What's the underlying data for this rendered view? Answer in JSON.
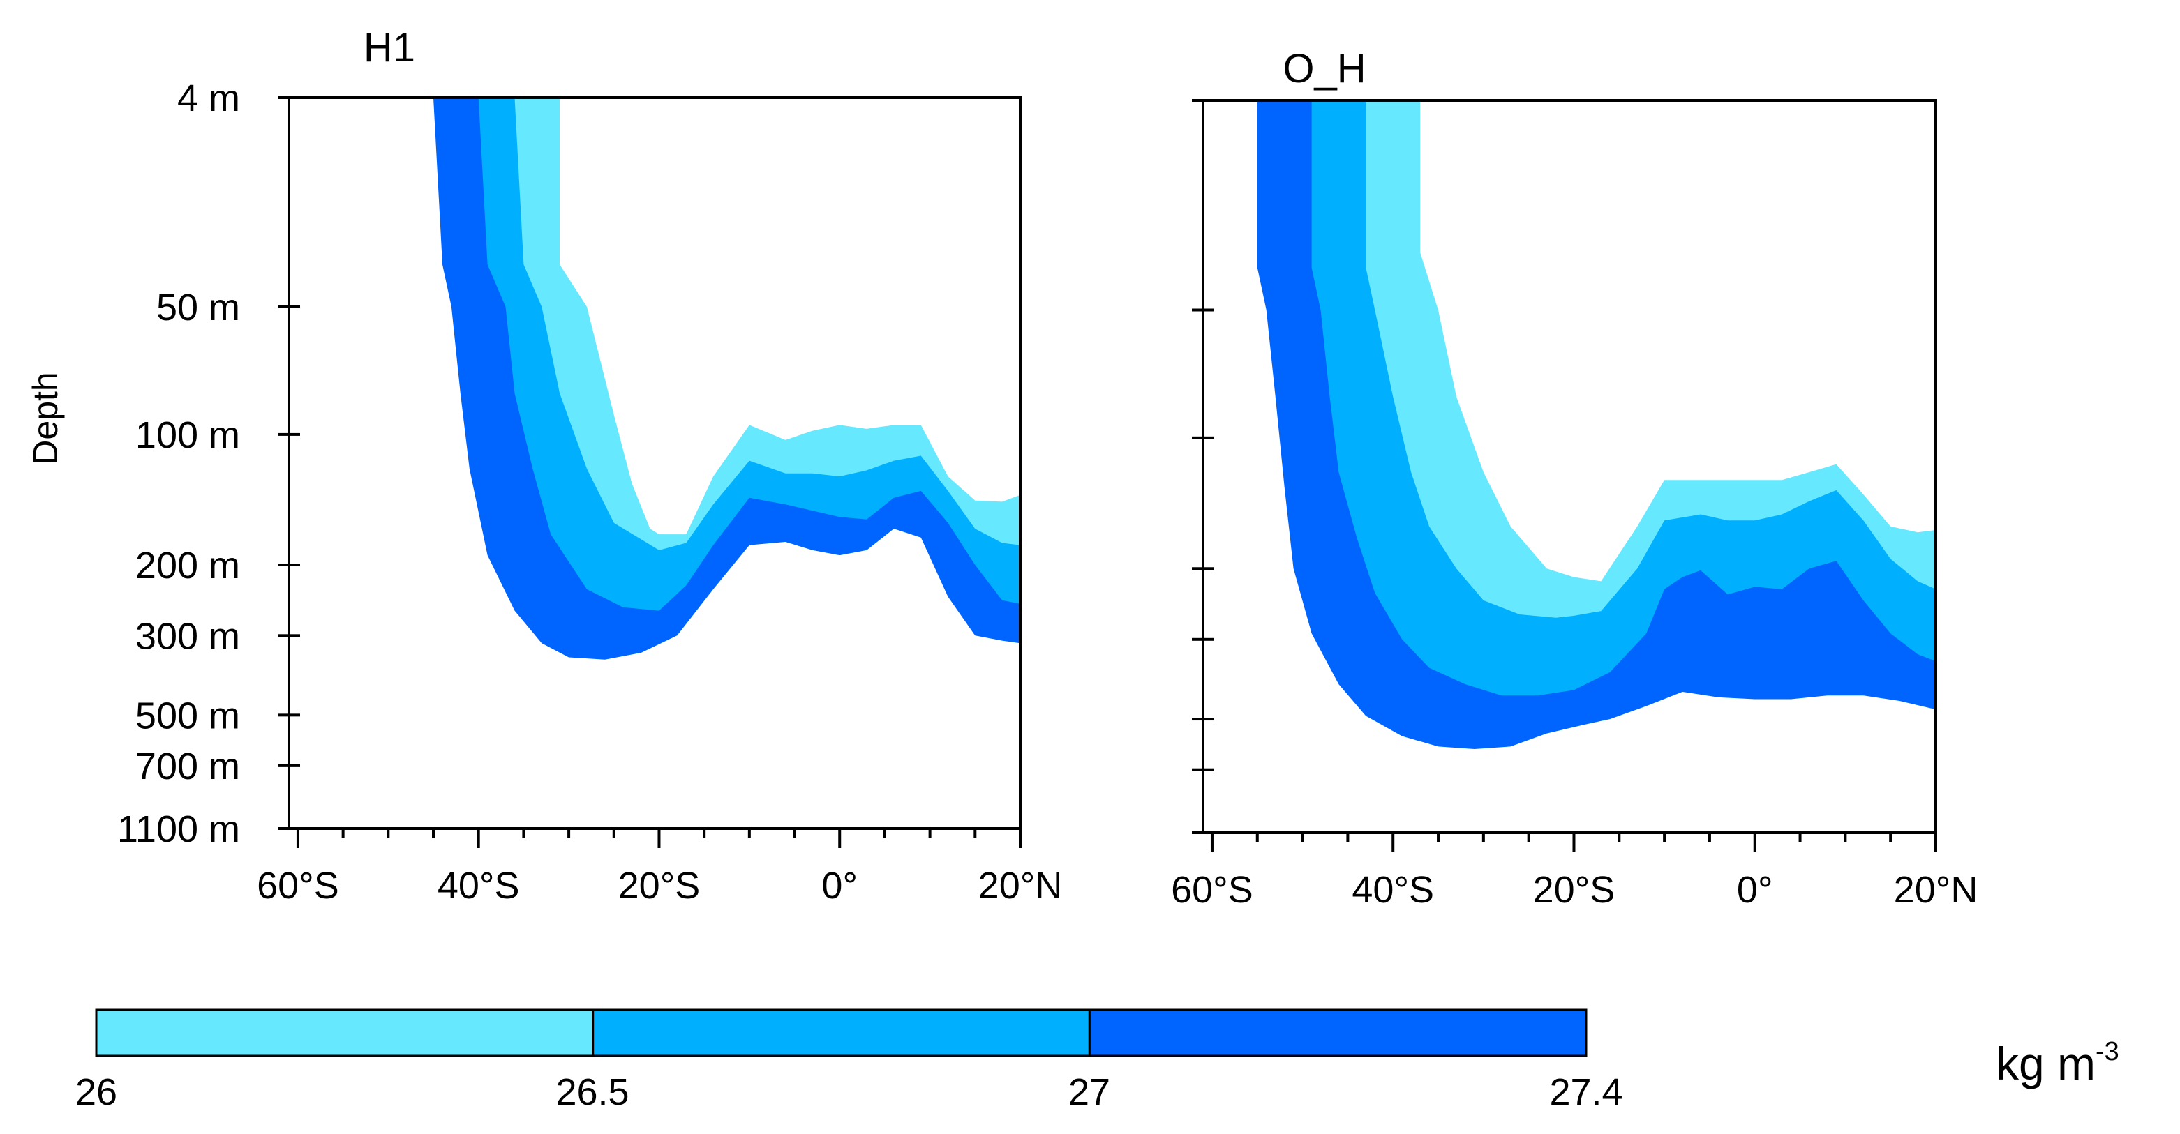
{
  "chart_data": {
    "type": "heatmap",
    "subtype": "filled-contour depth-latitude sections",
    "ylabel": "Depth",
    "y_ticks": [
      {
        "label": "4 m",
        "depth": 4
      },
      {
        "label": "50 m",
        "depth": 50
      },
      {
        "label": "100 m",
        "depth": 100
      },
      {
        "label": "200 m",
        "depth": 200
      },
      {
        "label": "300 m",
        "depth": 300
      },
      {
        "label": "500 m",
        "depth": 500
      },
      {
        "label": "700 m",
        "depth": 700
      },
      {
        "label": "1100 m",
        "depth": 1100
      }
    ],
    "x_ticks": [
      {
        "label": "60°S",
        "lat": -60
      },
      {
        "label": "40°S",
        "lat": -40
      },
      {
        "label": "20°S",
        "lat": -20
      },
      {
        "label": "0°",
        "lat": 0
      },
      {
        "label": "20°N",
        "lat": 20
      }
    ],
    "xlim": [
      -61,
      20
    ],
    "ylim": [
      4,
      1100
    ],
    "yscale": "nonlinear (ocean depth levels)",
    "level_colors": [
      "#66e8ff",
      "#00b0ff",
      "#0064ff"
    ],
    "colorbar": {
      "labels": [
        "26",
        "26.5",
        "27",
        "27.4"
      ],
      "unit_base": "kg m",
      "unit_exp": "-3"
    },
    "panels": [
      {
        "title": "H1",
        "isolines": [
          {
            "level": 26.0,
            "points": [
              [
                -31,
                4
              ],
              [
                -31,
                30
              ],
              [
                -28,
                50
              ],
              [
                -25,
                90
              ],
              [
                -23,
                130
              ],
              [
                -21,
                165
              ],
              [
                -20,
                170
              ],
              [
                -17,
                170
              ],
              [
                -14,
                125
              ],
              [
                -10,
                95
              ],
              [
                -6,
                103
              ],
              [
                -3,
                98
              ],
              [
                0,
                95
              ],
              [
                3,
                97
              ],
              [
                6,
                95
              ],
              [
                9,
                95
              ],
              [
                12,
                125
              ],
              [
                15,
                142
              ],
              [
                18,
                143
              ],
              [
                20,
                138
              ]
            ]
          },
          {
            "level": 26.5,
            "points": [
              [
                -36,
                4
              ],
              [
                -35,
                30
              ],
              [
                -33,
                50
              ],
              [
                -31,
                80
              ],
              [
                -28,
                120
              ],
              [
                -25,
                160
              ],
              [
                -20,
                185
              ],
              [
                -17,
                178
              ],
              [
                -14,
                145
              ],
              [
                -10,
                115
              ],
              [
                -6,
                123
              ],
              [
                -3,
                123
              ],
              [
                0,
                125
              ],
              [
                3,
                121
              ],
              [
                6,
                115
              ],
              [
                9,
                112
              ],
              [
                12,
                135
              ],
              [
                15,
                165
              ],
              [
                18,
                178
              ],
              [
                20,
                180
              ]
            ]
          },
          {
            "level": 27.0,
            "points": [
              [
                -40,
                4
              ],
              [
                -39,
                30
              ],
              [
                -37,
                50
              ],
              [
                -36,
                80
              ],
              [
                -34,
                120
              ],
              [
                -32,
                170
              ],
              [
                -28,
                230
              ],
              [
                -24,
                255
              ],
              [
                -20,
                260
              ],
              [
                -17,
                225
              ],
              [
                -14,
                180
              ],
              [
                -10,
                140
              ],
              [
                -6,
                145
              ],
              [
                -3,
                150
              ],
              [
                0,
                155
              ],
              [
                3,
                157
              ],
              [
                6,
                140
              ],
              [
                9,
                135
              ],
              [
                12,
                160
              ],
              [
                15,
                200
              ],
              [
                18,
                245
              ],
              [
                20,
                250
              ]
            ]
          },
          {
            "level": 27.4,
            "points": [
              [
                -45,
                4
              ],
              [
                -44,
                30
              ],
              [
                -43,
                50
              ],
              [
                -42,
                80
              ],
              [
                -41,
                120
              ],
              [
                -39,
                190
              ],
              [
                -36,
                260
              ],
              [
                -33,
                315
              ],
              [
                -30,
                345
              ],
              [
                -26,
                350
              ],
              [
                -22,
                335
              ],
              [
                -18,
                300
              ],
              [
                -14,
                230
              ],
              [
                -10,
                180
              ],
              [
                -6,
                177
              ],
              [
                -3,
                185
              ],
              [
                0,
                190
              ],
              [
                3,
                185
              ],
              [
                6,
                165
              ],
              [
                9,
                173
              ],
              [
                12,
                240
              ],
              [
                15,
                300
              ],
              [
                18,
                310
              ],
              [
                20,
                315
              ]
            ]
          }
        ]
      },
      {
        "title": "O_H",
        "isolines": [
          {
            "level": 26.0,
            "points": [
              [
                -37,
                4
              ],
              [
                -37,
                25
              ],
              [
                -35,
                50
              ],
              [
                -33,
                80
              ],
              [
                -30,
                120
              ],
              [
                -27,
                160
              ],
              [
                -23,
                200
              ],
              [
                -20,
                210
              ],
              [
                -17,
                215
              ],
              [
                -13,
                160
              ],
              [
                -10,
                125
              ],
              [
                -6,
                125
              ],
              [
                -3,
                125
              ],
              [
                0,
                125
              ],
              [
                3,
                125
              ],
              [
                6,
                120
              ],
              [
                9,
                115
              ],
              [
                12,
                135
              ],
              [
                15,
                160
              ],
              [
                18,
                165
              ],
              [
                20,
                163
              ]
            ]
          },
          {
            "level": 26.5,
            "points": [
              [
                -43,
                4
              ],
              [
                -43,
                30
              ],
              [
                -42,
                50
              ],
              [
                -40,
                80
              ],
              [
                -38,
                120
              ],
              [
                -36,
                160
              ],
              [
                -33,
                200
              ],
              [
                -30,
                240
              ],
              [
                -26,
                260
              ],
              [
                -22,
                265
              ],
              [
                -20,
                262
              ],
              [
                -17,
                255
              ],
              [
                -13,
                200
              ],
              [
                -10,
                155
              ],
              [
                -6,
                150
              ],
              [
                -3,
                155
              ],
              [
                0,
                155
              ],
              [
                3,
                150
              ],
              [
                6,
                140
              ],
              [
                9,
                132
              ],
              [
                12,
                155
              ],
              [
                15,
                190
              ],
              [
                18,
                215
              ],
              [
                20,
                225
              ]
            ]
          },
          {
            "level": 27.0,
            "points": [
              [
                -49,
                4
              ],
              [
                -49,
                30
              ],
              [
                -48,
                50
              ],
              [
                -47,
                80
              ],
              [
                -46,
                120
              ],
              [
                -44,
                170
              ],
              [
                -42,
                230
              ],
              [
                -39,
                300
              ],
              [
                -36,
                360
              ],
              [
                -32,
                400
              ],
              [
                -28,
                430
              ],
              [
                -24,
                430
              ],
              [
                -20,
                415
              ],
              [
                -16,
                370
              ],
              [
                -12,
                290
              ],
              [
                -10,
                225
              ],
              [
                -8,
                210
              ],
              [
                -6,
                202
              ],
              [
                -3,
                232
              ],
              [
                0,
                222
              ],
              [
                3,
                225
              ],
              [
                6,
                200
              ],
              [
                9,
                192
              ],
              [
                12,
                240
              ],
              [
                15,
                290
              ],
              [
                18,
                330
              ],
              [
                20,
                345
              ]
            ]
          },
          {
            "level": 27.4,
            "points": [
              [
                -55,
                4
              ],
              [
                -55,
                30
              ],
              [
                -54,
                50
              ],
              [
                -53,
                80
              ],
              [
                -52,
                130
              ],
              [
                -51,
                200
              ],
              [
                -49,
                290
              ],
              [
                -46,
                400
              ],
              [
                -43,
                490
              ],
              [
                -39,
                560
              ],
              [
                -35,
                600
              ],
              [
                -31,
                610
              ],
              [
                -27,
                600
              ],
              [
                -23,
                550
              ],
              [
                -19,
                520
              ],
              [
                -16,
                500
              ],
              [
                -12,
                460
              ],
              [
                -8,
                420
              ],
              [
                -4,
                435
              ],
              [
                0,
                440
              ],
              [
                4,
                440
              ],
              [
                8,
                430
              ],
              [
                12,
                430
              ],
              [
                16,
                445
              ],
              [
                20,
                470
              ]
            ]
          }
        ]
      }
    ]
  }
}
